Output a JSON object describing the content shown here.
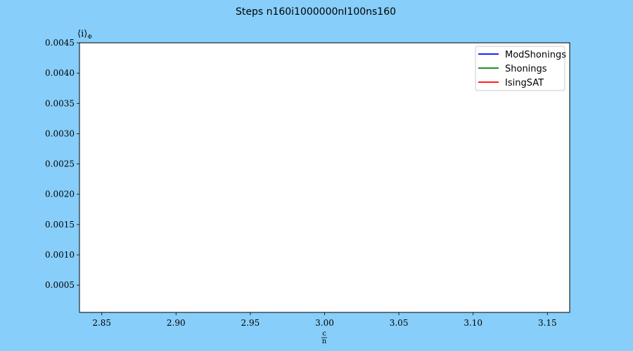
{
  "chart_data": {
    "type": "line",
    "title": "Steps n160i1000000nI100ns160",
    "ylabel": "⟨i⟩Φ",
    "ylabel_main": "⟨i⟩",
    "ylabel_sub": "Φ",
    "xlabel": "c/n",
    "xlabel_num": "c",
    "xlabel_den": "n",
    "xlim": [
      2.835,
      3.165
    ],
    "ylim": [
      5e-05,
      0.0045
    ],
    "xticks": [
      2.85,
      2.9,
      2.95,
      3.0,
      3.05,
      3.1,
      3.15
    ],
    "xtick_labels": [
      "2.85",
      "2.90",
      "2.95",
      "3.00",
      "3.05",
      "3.10",
      "3.15"
    ],
    "yticks": [
      0.0005,
      0.001,
      0.0015,
      0.002,
      0.0025,
      0.003,
      0.0035,
      0.004,
      0.0045
    ],
    "ytick_labels": [
      "0.0005",
      "0.0010",
      "0.0015",
      "0.0020",
      "0.0025",
      "0.0030",
      "0.0035",
      "0.0040",
      "0.0045"
    ],
    "grid": false,
    "legend_position": "top-right",
    "series": [
      {
        "name": "ModShonings",
        "color": "#0000ff",
        "x": [],
        "y": []
      },
      {
        "name": "Shonings",
        "color": "#008000",
        "x": [],
        "y": []
      },
      {
        "name": "IsingSAT",
        "color": "#ff0000",
        "x": [],
        "y": []
      }
    ],
    "colors": {
      "figure_bg": "#87cefa",
      "plot_bg": "#ffffff"
    }
  }
}
